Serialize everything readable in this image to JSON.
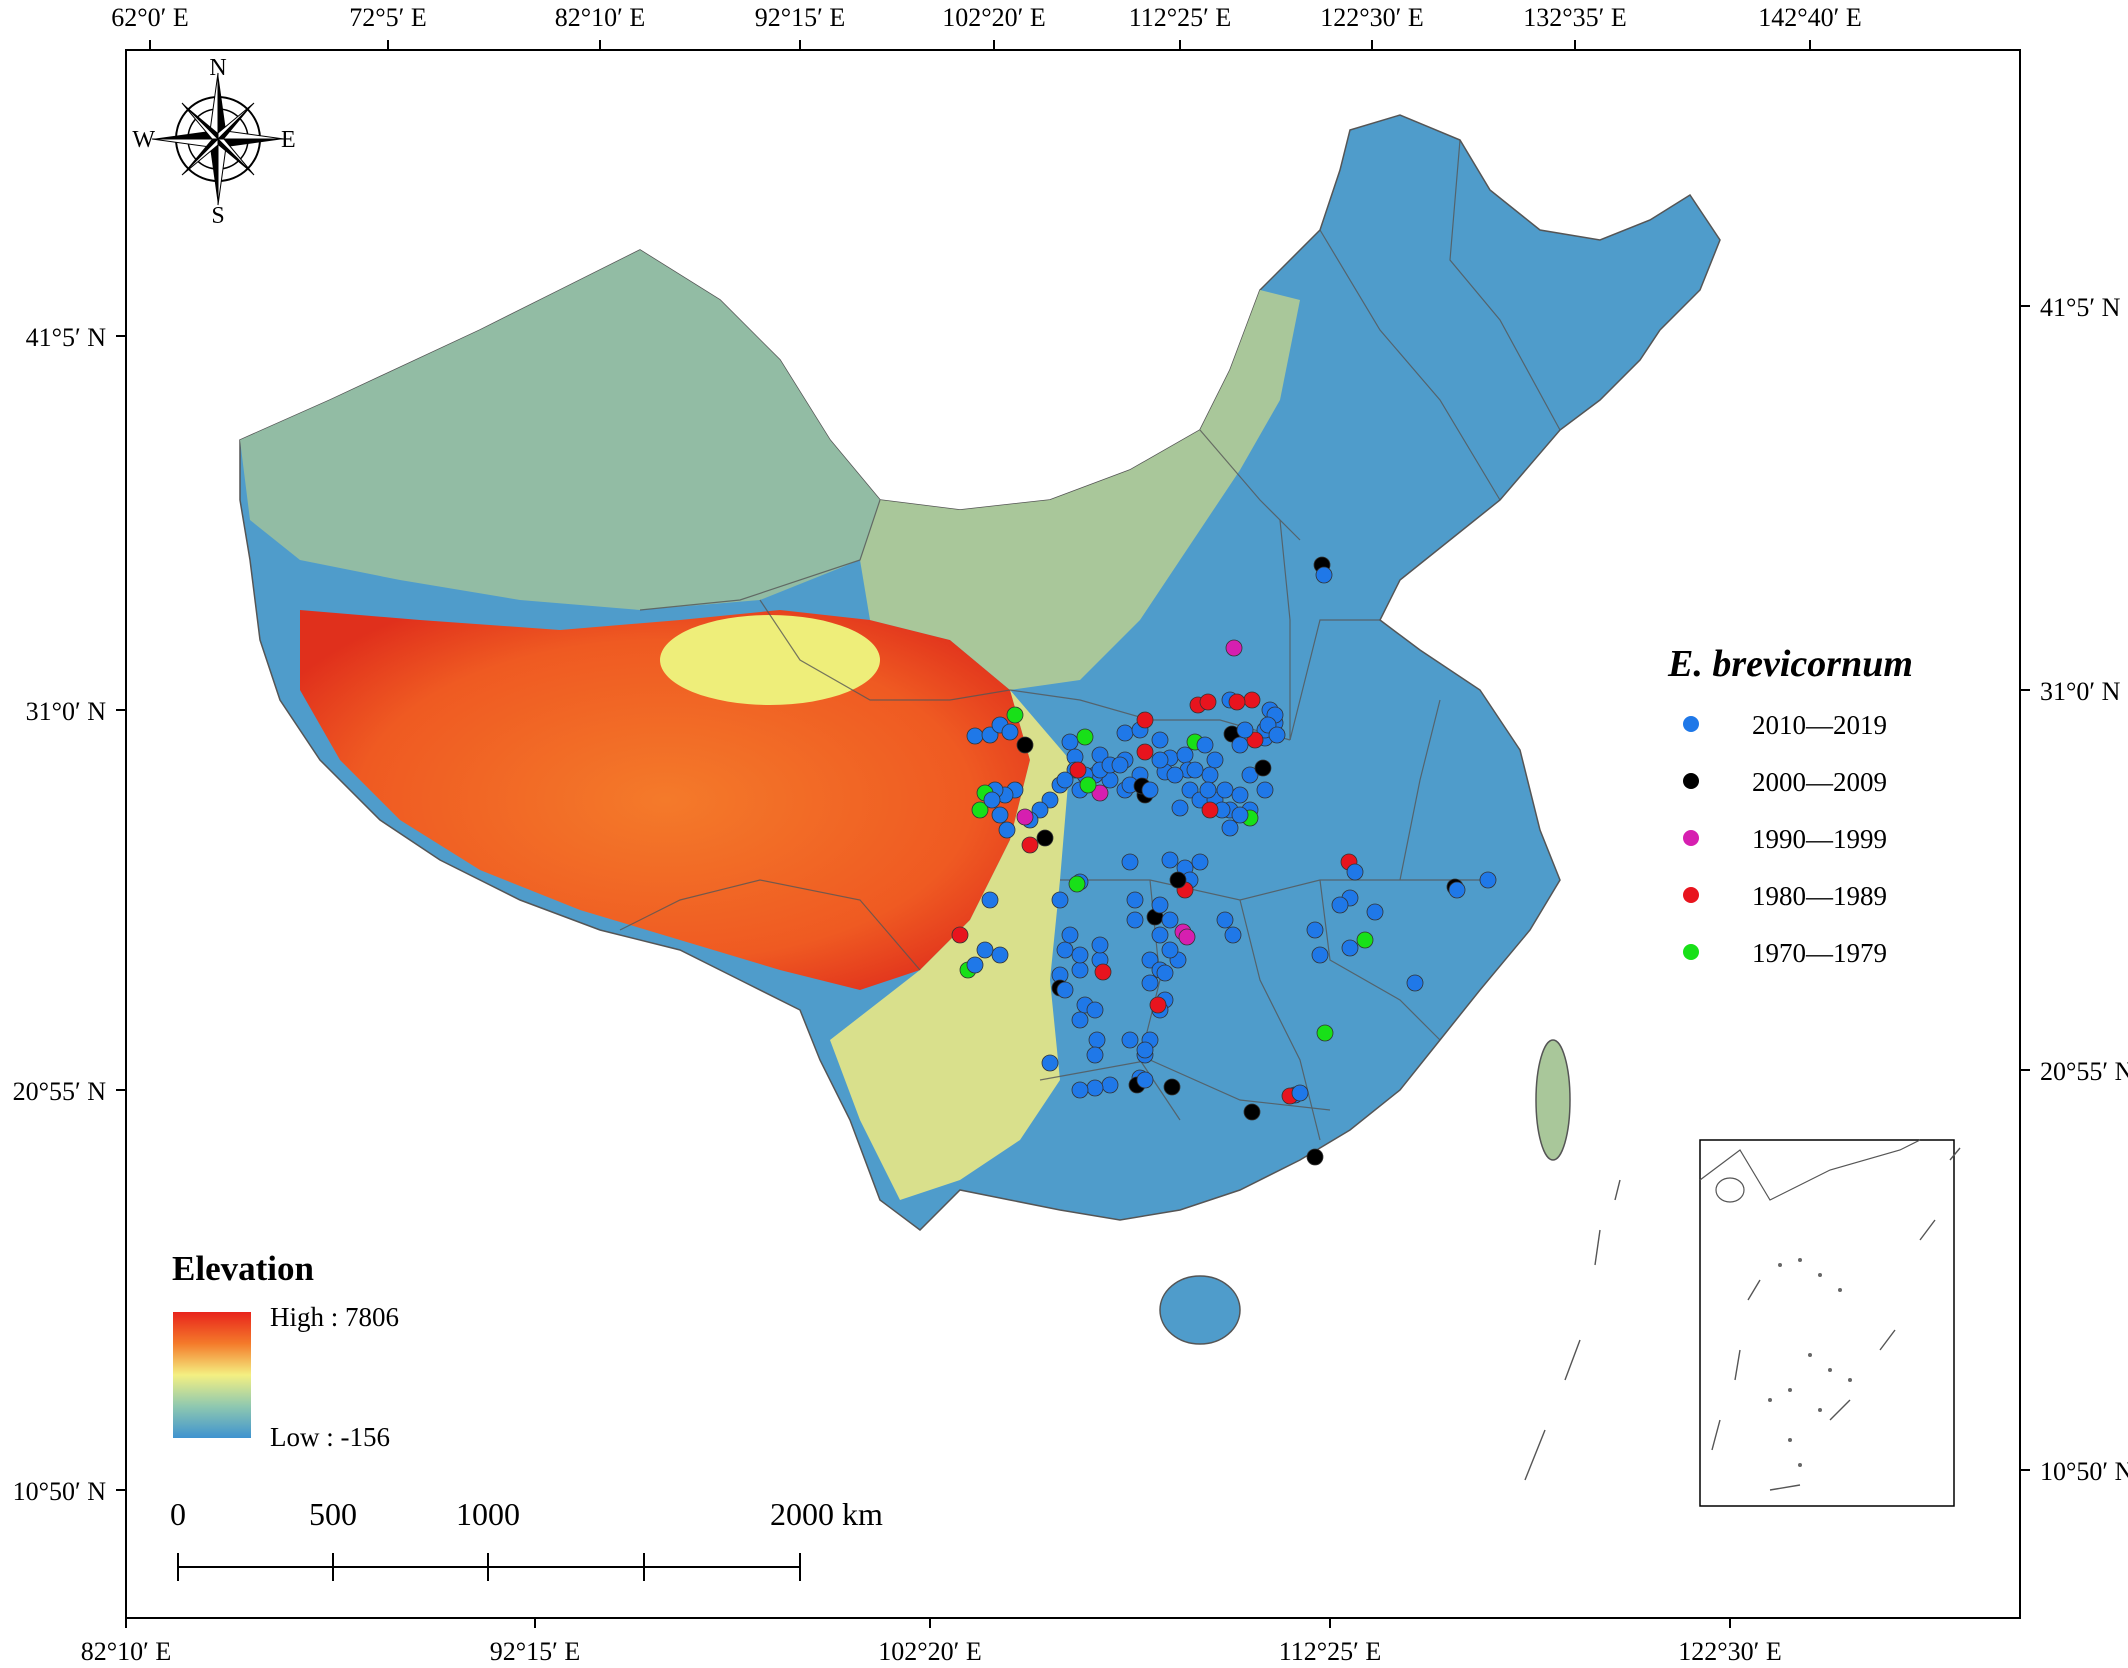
{
  "axes": {
    "top": [
      "62°0′ E",
      "72°5′ E",
      "82°10′ E",
      "92°15′ E",
      "102°20′ E",
      "112°25′ E",
      "122°30′ E",
      "132°35′ E",
      "142°40′ E"
    ],
    "bottom": [
      "82°10′ E",
      "92°15′ E",
      "102°20′ E",
      "112°25′ E",
      "122°30′ E"
    ],
    "left": [
      "41°5′ N",
      "31°0′ N",
      "20°55′ N",
      "10°50′ N"
    ],
    "right": [
      "41°5′ N",
      "31°0′ N",
      "20°55′ N",
      "10°50′ N"
    ]
  },
  "compass": {
    "n": "N",
    "s": "S",
    "e": "E",
    "w": "W"
  },
  "species_legend": {
    "title": "E. brevicornum",
    "items": [
      {
        "label": "2010—2019",
        "color": "#1f78e8"
      },
      {
        "label": "2000—2009",
        "color": "#000000"
      },
      {
        "label": "1990—1999",
        "color": "#d61fb0"
      },
      {
        "label": "1980—1989",
        "color": "#e8141e"
      },
      {
        "label": "1970—1979",
        "color": "#18e018"
      }
    ]
  },
  "elevation_legend": {
    "title": "Elevation",
    "high": "High : 7806",
    "low": "Low : -156"
  },
  "scale_bar": {
    "labels": [
      "0",
      "500",
      "1000",
      "2000 km"
    ]
  }
}
